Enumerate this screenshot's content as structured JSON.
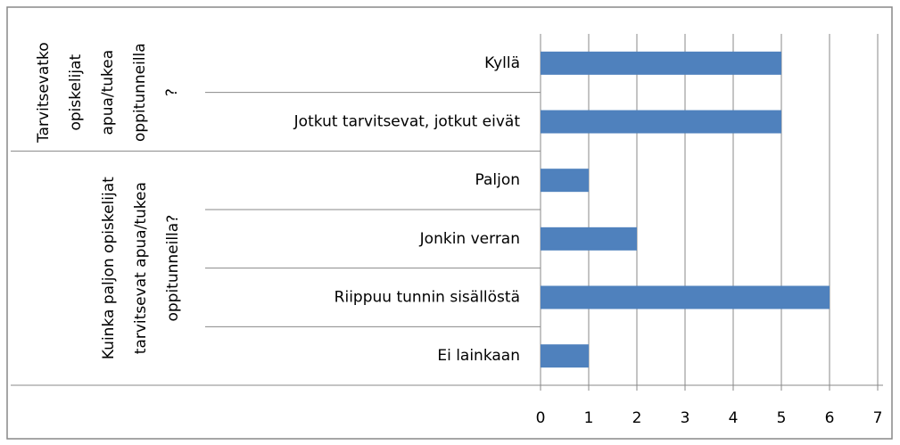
{
  "chart_data": {
    "type": "bar",
    "orientation": "horizontal",
    "color": "#4f81bd",
    "grid": true,
    "xlim": [
      0,
      7
    ],
    "xticks": [
      0,
      1,
      2,
      3,
      4,
      5,
      6,
      7
    ],
    "groups": [
      {
        "label": [
          "Tarvitsevatko",
          "opiskelijat",
          "apua/tukea",
          "oppitunneilla",
          "?"
        ],
        "categories": [
          "Kyllä",
          "Jotkut tarvitsevat, jotkut eivät"
        ],
        "values": [
          5,
          5
        ]
      },
      {
        "label": [
          "Kuinka paljon opiskelijat",
          "tarvitsevat apua/tukea",
          "oppitunneilla?"
        ],
        "categories": [
          "Paljon",
          "Jonkin verran",
          "Riippuu tunnin sisällöstä",
          "Ei lainkaan"
        ],
        "values": [
          1,
          2,
          6,
          1
        ]
      }
    ]
  }
}
